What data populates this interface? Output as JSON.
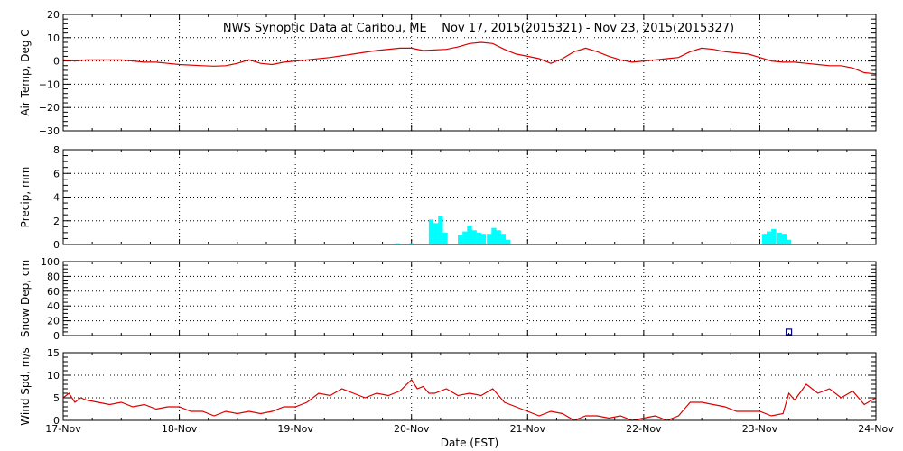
{
  "chart_data": {
    "type": "line",
    "title": "NWS Synoptic Data at Caribou, ME    Nov 17, 2015(2015321) - Nov 23, 2015(2015327)",
    "xlabel": "Date (EST)",
    "x_range_days": [
      0,
      7
    ],
    "x_tick_labels": [
      "17-Nov",
      "18-Nov",
      "19-Nov",
      "20-Nov",
      "21-Nov",
      "22-Nov",
      "23-Nov",
      "24-Nov"
    ],
    "grid": true,
    "colors": {
      "temp": "#dd0000",
      "precip": "#00ffff",
      "wind": "#dd0000",
      "snow": "#000080",
      "grid": "#000000"
    },
    "panels": [
      {
        "key": "temp",
        "type": "line",
        "ylabel": "Air Temp, Deg C",
        "ylim": [
          -30,
          20
        ],
        "y_major": 10,
        "y_minor": 2,
        "y_ticks": [
          "20",
          "10",
          "0",
          "−10",
          "−20",
          "−30"
        ],
        "x": [
          0,
          0.1,
          0.2,
          0.3,
          0.4,
          0.5,
          0.6,
          0.7,
          0.8,
          0.9,
          1.0,
          1.2,
          1.3,
          1.4,
          1.5,
          1.6,
          1.7,
          1.8,
          1.9,
          2.0,
          2.1,
          2.3,
          2.5,
          2.7,
          2.9,
          3.0,
          3.1,
          3.3,
          3.4,
          3.5,
          3.6,
          3.7,
          3.8,
          3.9,
          4.0,
          4.1,
          4.2,
          4.3,
          4.4,
          4.5,
          4.6,
          4.7,
          4.8,
          4.9,
          5.0,
          5.1,
          5.2,
          5.3,
          5.4,
          5.5,
          5.6,
          5.7,
          5.8,
          5.9,
          6.0,
          6.1,
          6.2,
          6.3,
          6.4,
          6.5,
          6.6,
          6.7,
          6.8,
          6.9,
          7.0
        ],
        "y": [
          0.5,
          0,
          0.5,
          0.5,
          0.5,
          0.5,
          0,
          -0.5,
          -0.5,
          -1,
          -1.5,
          -2,
          -2.2,
          -2,
          -1,
          0.5,
          -1,
          -1.5,
          -0.5,
          0,
          0.5,
          1.5,
          3,
          4.5,
          5.5,
          5.5,
          4.5,
          5,
          6,
          7.5,
          8,
          7.5,
          5,
          3,
          2,
          1,
          -1,
          1,
          4,
          5.5,
          4,
          2,
          0.5,
          -0.5,
          0,
          0.5,
          1,
          1.5,
          4,
          5.5,
          5,
          4,
          3.5,
          3,
          1.5,
          0,
          -0.5,
          -0.5,
          -1,
          -1.5,
          -2,
          -2,
          -3,
          -5,
          -5.5
        ]
      },
      {
        "key": "precip",
        "type": "bar",
        "ylabel": "Precip, mm",
        "ylim": [
          0,
          8
        ],
        "y_major": 2,
        "y_minor": 0.5,
        "y_ticks": [
          "8",
          "6",
          "4",
          "2",
          "0"
        ],
        "bar_width_days": 0.042,
        "x": [
          2.88,
          3.0,
          3.17,
          3.21,
          3.25,
          3.29,
          3.42,
          3.46,
          3.5,
          3.54,
          3.58,
          3.62,
          3.67,
          3.71,
          3.75,
          3.79,
          3.83,
          6.04,
          6.08,
          6.12,
          6.17,
          6.21,
          6.25
        ],
        "values": [
          0.1,
          0.1,
          2.1,
          1.8,
          2.4,
          1.0,
          0.8,
          1.1,
          1.6,
          1.2,
          1.0,
          0.9,
          0.9,
          1.4,
          1.2,
          0.9,
          0.4,
          0.9,
          1.1,
          1.3,
          1.0,
          0.9,
          0.4
        ]
      },
      {
        "key": "snow",
        "type": "scatter",
        "ylabel": "Snow Dep, cm",
        "ylim": [
          0,
          100
        ],
        "y_major": 20,
        "y_minor": 5,
        "y_ticks": [
          "100",
          "80",
          "60",
          "40",
          "20",
          "0"
        ],
        "x": [
          6.25
        ],
        "y": [
          5
        ]
      },
      {
        "key": "wind",
        "type": "line",
        "ylabel": "Wind Spd, m/s",
        "ylim": [
          0,
          15
        ],
        "y_major": 5,
        "y_minor": 1,
        "y_ticks": [
          "15",
          "10",
          "5",
          "0"
        ],
        "x": [
          0,
          0.05,
          0.1,
          0.15,
          0.2,
          0.3,
          0.4,
          0.5,
          0.6,
          0.7,
          0.8,
          0.9,
          1.0,
          1.1,
          1.2,
          1.3,
          1.4,
          1.5,
          1.6,
          1.7,
          1.8,
          1.9,
          2.0,
          2.1,
          2.2,
          2.3,
          2.4,
          2.5,
          2.6,
          2.7,
          2.8,
          2.9,
          3.0,
          3.05,
          3.1,
          3.15,
          3.2,
          3.3,
          3.4,
          3.5,
          3.6,
          3.7,
          3.8,
          3.9,
          4.0,
          4.1,
          4.2,
          4.3,
          4.4,
          4.5,
          4.6,
          4.7,
          4.8,
          4.9,
          5.0,
          5.1,
          5.2,
          5.3,
          5.4,
          5.5,
          5.6,
          5.7,
          5.8,
          5.9,
          6.0,
          6.1,
          6.2,
          6.25,
          6.3,
          6.4,
          6.5,
          6.6,
          6.7,
          6.8,
          6.9,
          7.0
        ],
        "y": [
          5,
          6,
          4,
          5,
          4.5,
          4,
          3.5,
          4,
          3,
          3.5,
          2.5,
          3,
          3,
          2,
          2,
          1,
          2,
          1.5,
          2,
          1.5,
          2,
          3,
          3,
          4,
          6,
          5.5,
          7,
          6,
          5,
          6,
          5.5,
          6.5,
          9,
          7,
          7.5,
          6,
          6,
          7,
          5.5,
          6,
          5.5,
          7,
          4,
          3,
          2,
          1,
          2,
          1.5,
          0,
          1,
          1,
          0.5,
          1,
          0,
          0.5,
          1,
          0,
          1,
          4,
          4,
          3.5,
          3,
          2,
          2,
          2,
          1,
          1.5,
          6,
          4.5,
          8,
          6,
          7,
          5,
          6.5,
          3.5,
          5
        ]
      }
    ]
  }
}
